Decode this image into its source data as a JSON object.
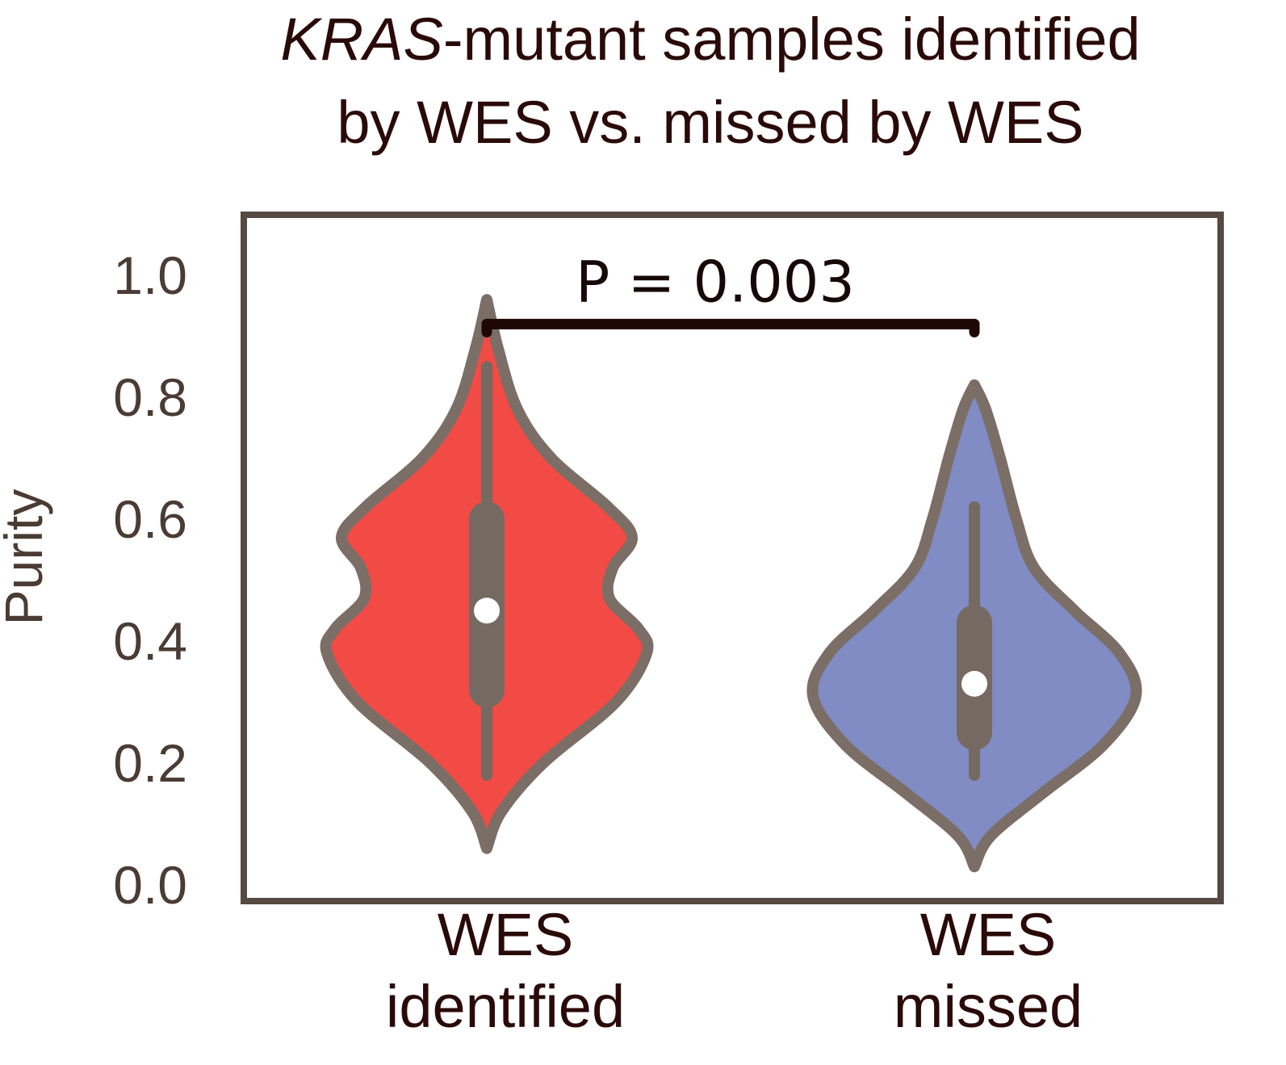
{
  "title": {
    "line1_italic": "KRAS",
    "line1_rest": "-mutant samples identified",
    "line2": "by WES vs. missed by WES"
  },
  "colors": {
    "frame": "#574a42",
    "violin_outline": "#7a6e66",
    "box": "#756962",
    "median": "#ffffff",
    "bracket": "#1e0806"
  },
  "chart_data": {
    "type": "violin",
    "ylabel": "Purity",
    "ylim": [
      0.0,
      1.1
    ],
    "yticks": [
      "0.0",
      "0.2",
      "0.4",
      "0.6",
      "0.8",
      "1.0"
    ],
    "categories": [
      {
        "line1": "WES",
        "line2": "identified"
      },
      {
        "line1": "WES",
        "line2": "missed"
      }
    ],
    "series": [
      {
        "color": "#f24b45",
        "median": 0.45,
        "q1": 0.32,
        "q3": 0.6,
        "whisker_low": 0.18,
        "whisker_high": 0.85,
        "density": [
          [
            0.06,
            0.0
          ],
          [
            0.12,
            0.09
          ],
          [
            0.2,
            0.35
          ],
          [
            0.3,
            0.8
          ],
          [
            0.38,
            0.99
          ],
          [
            0.42,
            0.94
          ],
          [
            0.47,
            0.76
          ],
          [
            0.52,
            0.78
          ],
          [
            0.57,
            0.9
          ],
          [
            0.62,
            0.75
          ],
          [
            0.7,
            0.4
          ],
          [
            0.78,
            0.19
          ],
          [
            0.88,
            0.07
          ],
          [
            0.96,
            0.0
          ]
        ]
      },
      {
        "color": "#818bc4",
        "median": 0.33,
        "q1": 0.25,
        "q3": 0.43,
        "whisker_low": 0.18,
        "whisker_high": 0.62,
        "density": [
          [
            0.03,
            0.0
          ],
          [
            0.08,
            0.1
          ],
          [
            0.15,
            0.42
          ],
          [
            0.23,
            0.8
          ],
          [
            0.31,
            1.0
          ],
          [
            0.38,
            0.9
          ],
          [
            0.45,
            0.62
          ],
          [
            0.52,
            0.37
          ],
          [
            0.6,
            0.26
          ],
          [
            0.7,
            0.16
          ],
          [
            0.78,
            0.07
          ],
          [
            0.82,
            0.0
          ]
        ]
      }
    ],
    "annotation": {
      "label": "P = 0.003",
      "y": 0.92
    }
  }
}
